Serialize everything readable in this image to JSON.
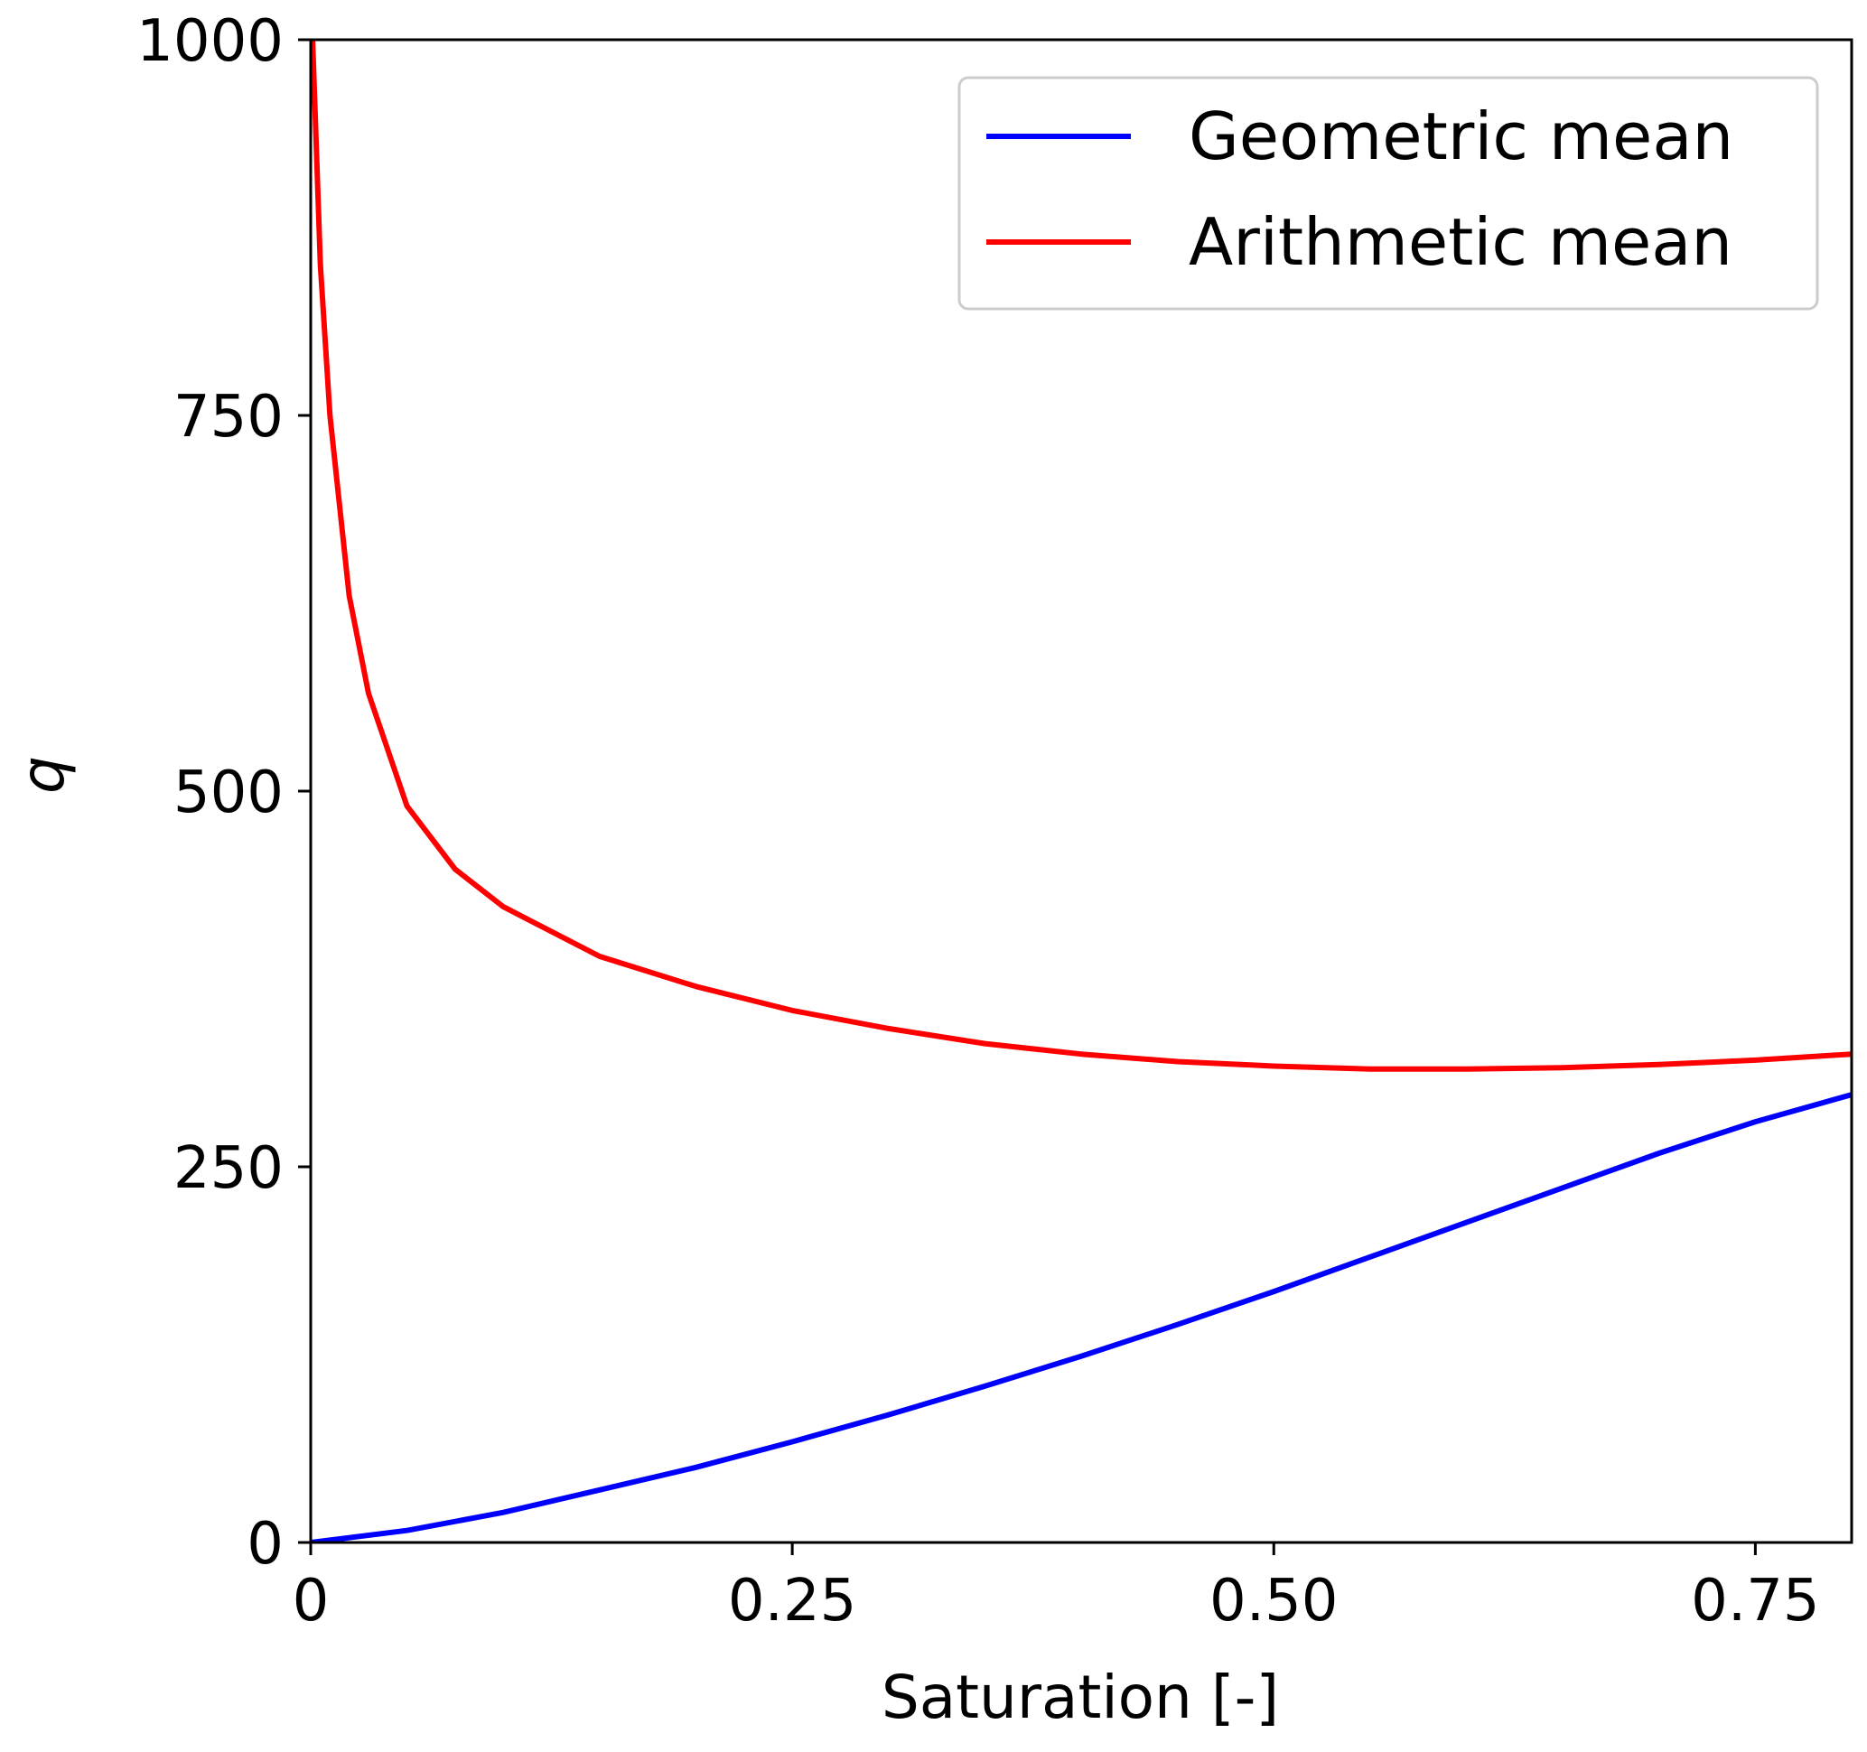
{
  "chart_data": {
    "type": "line",
    "title": "",
    "xlabel": "Saturation [-]",
    "ylabel": "q",
    "xlim": [
      0,
      0.8
    ],
    "ylim": [
      0,
      1000
    ],
    "xticks": [
      0,
      0.25,
      0.5,
      0.75
    ],
    "xtick_labels": [
      "0",
      "0.25",
      "0.50",
      "0.75"
    ],
    "yticks": [
      0,
      250,
      500,
      750,
      1000
    ],
    "ytick_labels": [
      "0",
      "250",
      "500",
      "750",
      "1000"
    ],
    "grid": false,
    "legend_position": "top-right",
    "series": [
      {
        "name": "Geometric mean",
        "color": "#0000ff",
        "x": [
          0,
          0.05,
          0.1,
          0.15,
          0.2,
          0.25,
          0.3,
          0.35,
          0.4,
          0.45,
          0.5,
          0.55,
          0.6,
          0.65,
          0.7,
          0.75,
          0.8
        ],
        "y": [
          0,
          8,
          20,
          35,
          50,
          67,
          85,
          104,
          124,
          145,
          167,
          190,
          213,
          236,
          259,
          280,
          298
        ]
      },
      {
        "name": "Arithmetic mean",
        "color": "#ff0000",
        "x": [
          0.001,
          0.005,
          0.01,
          0.02,
          0.03,
          0.05,
          0.075,
          0.1,
          0.15,
          0.2,
          0.25,
          0.3,
          0.35,
          0.4,
          0.45,
          0.5,
          0.55,
          0.6,
          0.65,
          0.7,
          0.75,
          0.8
        ],
        "y": [
          1000,
          850,
          750,
          630,
          565,
          490,
          448,
          423,
          390,
          370,
          354,
          342,
          332,
          325,
          320,
          317,
          315,
          315,
          316,
          318,
          321,
          325
        ]
      }
    ]
  }
}
